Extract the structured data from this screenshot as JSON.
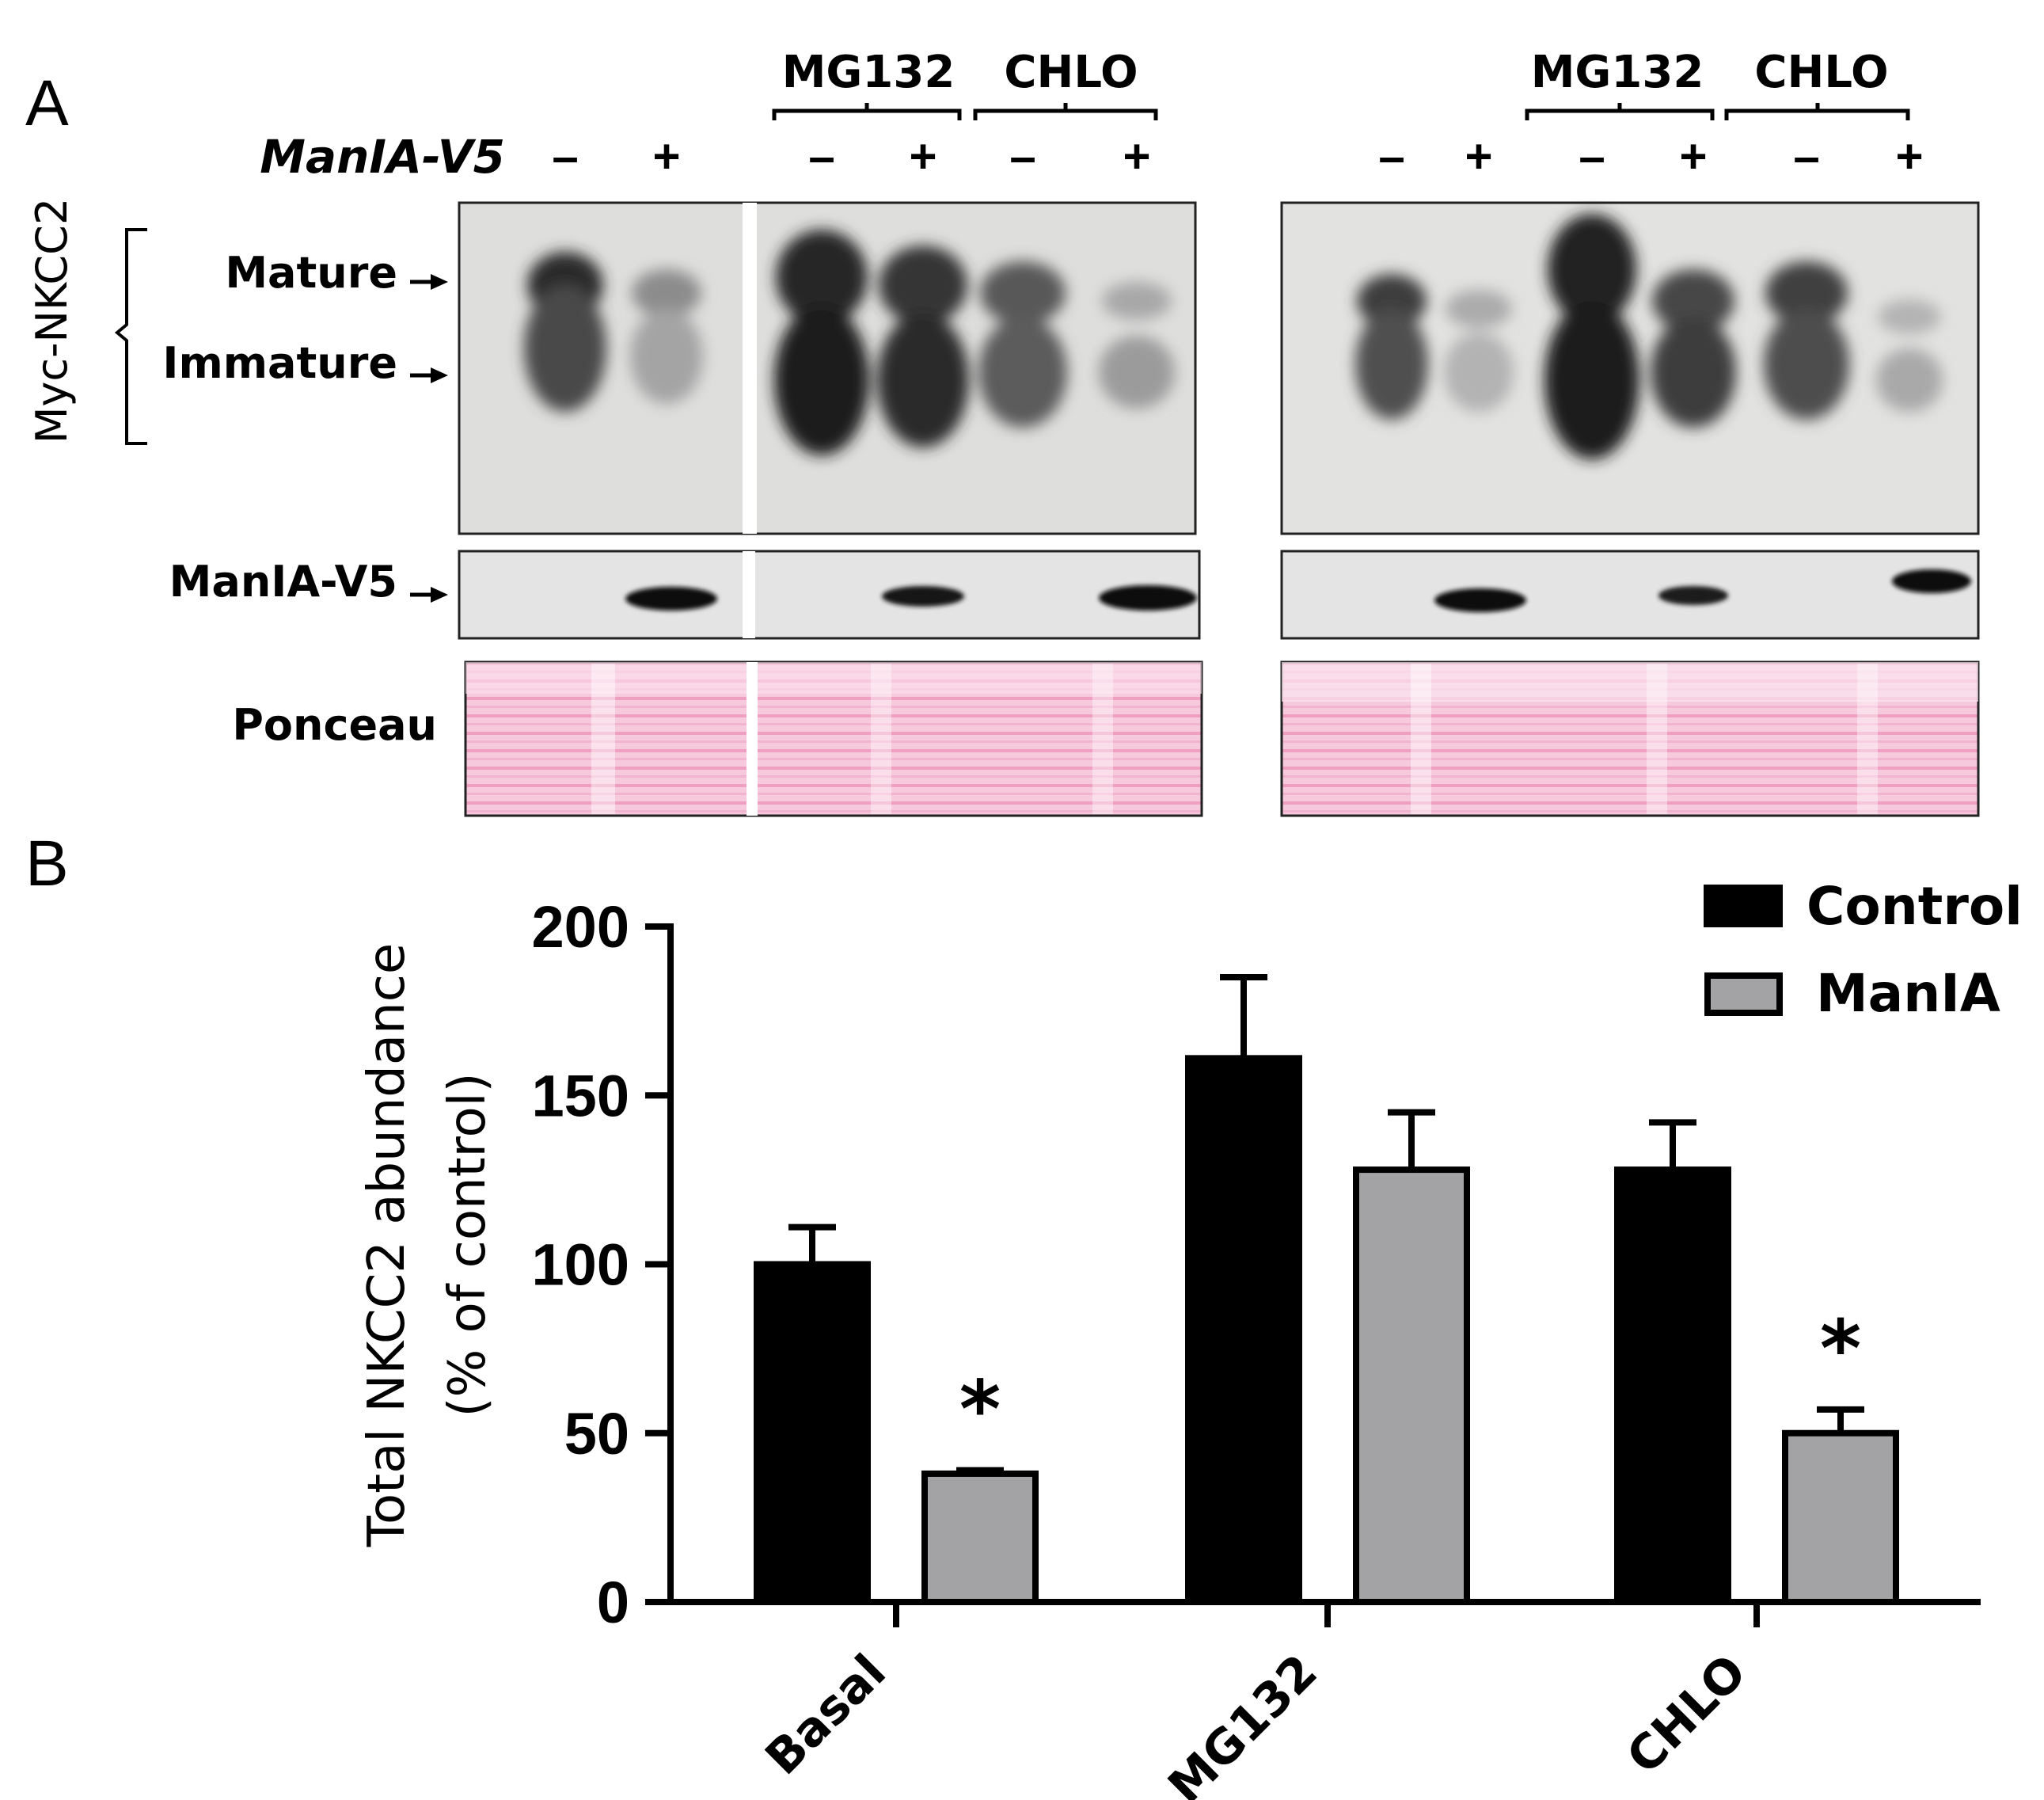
{
  "panel_a": {
    "letter": "A",
    "treatment_label": "ManIA-V5",
    "group_labels": [
      "MG132",
      "CHLO"
    ],
    "lane_signs": [
      "–",
      "+",
      "–",
      "+",
      "–",
      "+"
    ],
    "side_label": "Myc-NKCC2",
    "band_labels": {
      "mature": "Mature",
      "immature": "Immature"
    },
    "row_labels": {
      "maniav5": "ManIA-V5",
      "ponceau": "Ponceau"
    }
  },
  "panel_b": {
    "letter": "B"
  },
  "chart_data": {
    "type": "bar",
    "categories": [
      "Basal",
      "MG132",
      "CHLO"
    ],
    "series": [
      {
        "name": "Control",
        "color": "#000000",
        "values": [
          100,
          161,
          128
        ],
        "errors": [
          11,
          24,
          14
        ]
      },
      {
        "name": "ManIA",
        "color": "#a3a3a6",
        "values": [
          38,
          128,
          50
        ],
        "errors": [
          1,
          17,
          7
        ]
      }
    ],
    "ylabel_line1": "Total NKCC2 abundance",
    "ylabel_line2": "(% of control)",
    "ylim": [
      0,
      200
    ],
    "yticks": [
      0,
      50,
      100,
      150,
      200
    ],
    "significance": [
      {
        "category": "Basal",
        "series": "ManIA",
        "mark": "*"
      },
      {
        "category": "CHLO",
        "series": "ManIA",
        "mark": "*"
      }
    ],
    "legend_position": "top-right"
  }
}
